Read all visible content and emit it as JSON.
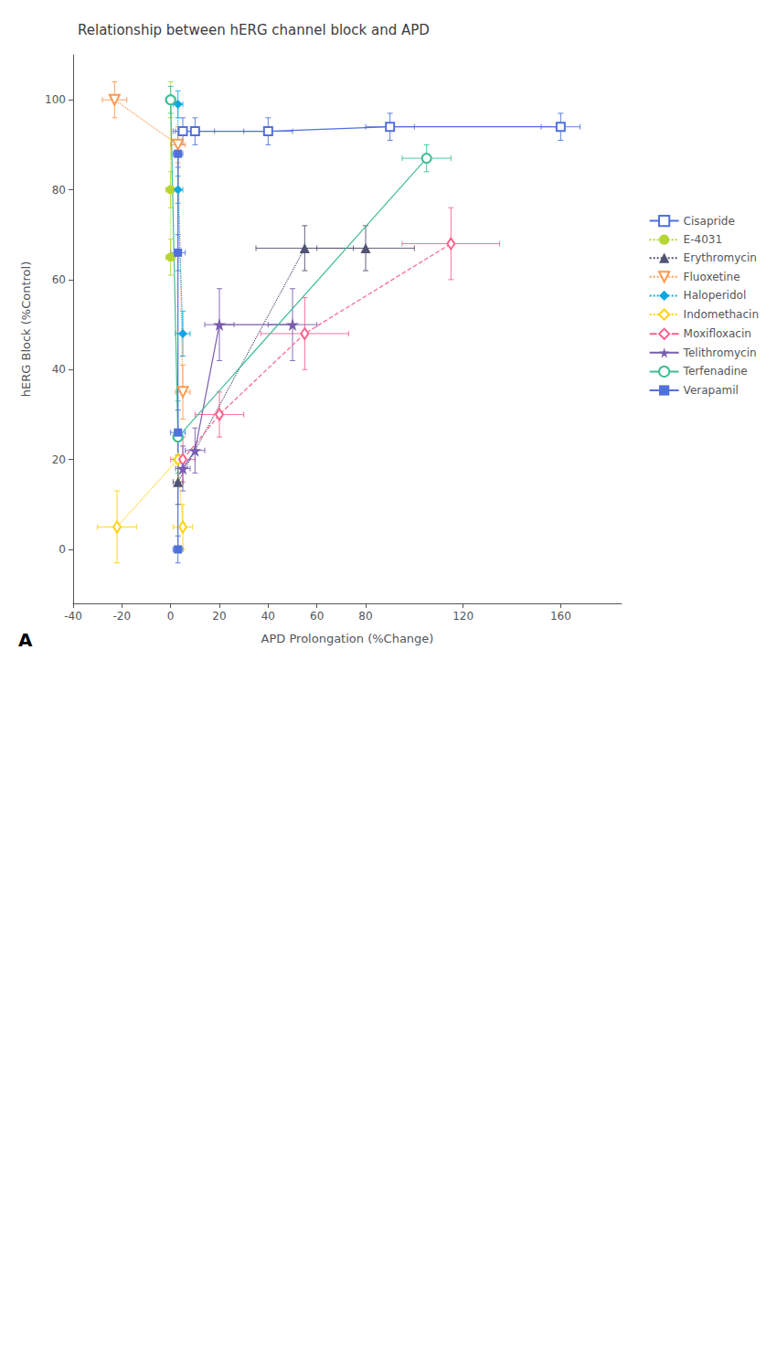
{
  "chart_data": {
    "type": "line",
    "title": "Relationship between hERG channel block and APD",
    "xlabel": "APD Prolongation (%Change)",
    "ylabel": "hERG Block (%Control)",
    "xlim": [
      -40,
      185
    ],
    "xticks": [
      -40,
      -20,
      0,
      20,
      40,
      60,
      80,
      120,
      160
    ],
    "ylim": [
      -12,
      110
    ],
    "yticks": [
      0,
      20,
      40,
      60,
      80,
      100
    ],
    "grid": false,
    "legend": "right",
    "annotations": [
      "A"
    ],
    "series": [
      {
        "name": "Cisapride",
        "x": [
          5,
          10,
          40,
          90,
          160
        ],
        "values": [
          93,
          93,
          93,
          94,
          94
        ],
        "xerr": [
          4,
          8,
          10,
          10,
          8
        ],
        "yerr": [
          3,
          3,
          3,
          3,
          3
        ],
        "marker": "open square",
        "line_style": "solid"
      },
      {
        "name": "E-4031",
        "x": [
          0,
          0,
          0
        ],
        "values": [
          100,
          80,
          65
        ],
        "xerr": [
          2,
          2,
          2
        ],
        "yerr": [
          4,
          4,
          4
        ],
        "marker": "circle",
        "line_style": "dotted"
      },
      {
        "name": "Erythromycin",
        "x": [
          3,
          55,
          80
        ],
        "values": [
          15,
          67,
          67
        ],
        "xerr": [
          2,
          20,
          20
        ],
        "yerr": [
          5,
          5,
          5
        ],
        "marker": "triangle",
        "line_style": "dotted"
      },
      {
        "name": "Fluoxetine",
        "x": [
          -23,
          3,
          5
        ],
        "values": [
          100,
          90,
          35
        ],
        "xerr": [
          5,
          3,
          3
        ],
        "yerr": [
          4,
          4,
          6
        ],
        "marker": "open triangle-down",
        "line_style": "dotted"
      },
      {
        "name": "Haloperidol",
        "x": [
          3,
          3,
          5
        ],
        "values": [
          99,
          80,
          48
        ],
        "xerr": [
          2,
          2,
          3
        ],
        "yerr": [
          3,
          3,
          5
        ],
        "marker": "diamond",
        "line_style": "dotted"
      },
      {
        "name": "Indomethacin",
        "x": [
          -22,
          3,
          5
        ],
        "values": [
          5,
          20,
          5
        ],
        "xerr": [
          8,
          2,
          4
        ],
        "yerr": [
          8,
          5,
          5
        ],
        "marker": "open thin diamond",
        "line_style": "dotted"
      },
      {
        "name": "Moxifloxacin",
        "x": [
          5,
          20,
          55,
          115
        ],
        "values": [
          20,
          30,
          48,
          68
        ],
        "xerr": [
          5,
          10,
          18,
          20
        ],
        "yerr": [
          5,
          5,
          8,
          8
        ],
        "marker": "open thin diamond",
        "line_style": "dashed"
      },
      {
        "name": "Telithromycin",
        "x": [
          5,
          10,
          20,
          50
        ],
        "values": [
          18,
          22,
          50,
          50
        ],
        "xerr": [
          3,
          4,
          6,
          10
        ],
        "yerr": [
          5,
          5,
          8,
          8
        ],
        "marker": "star",
        "line_style": "solid"
      },
      {
        "name": "Terfenadine",
        "x": [
          0,
          3,
          105
        ],
        "values": [
          100,
          25,
          87
        ],
        "xerr": [
          2,
          2,
          10
        ],
        "yerr": [
          3,
          8,
          3
        ],
        "marker": "open circle",
        "line_style": "solid"
      },
      {
        "name": "Verapamil",
        "x": [
          3,
          3,
          3,
          3
        ],
        "values": [
          88,
          66,
          26,
          0
        ],
        "xerr": [
          2,
          3,
          3,
          2
        ],
        "yerr": [
          3,
          4,
          5,
          3
        ],
        "marker": "square",
        "line_style": "solid"
      }
    ]
  }
}
